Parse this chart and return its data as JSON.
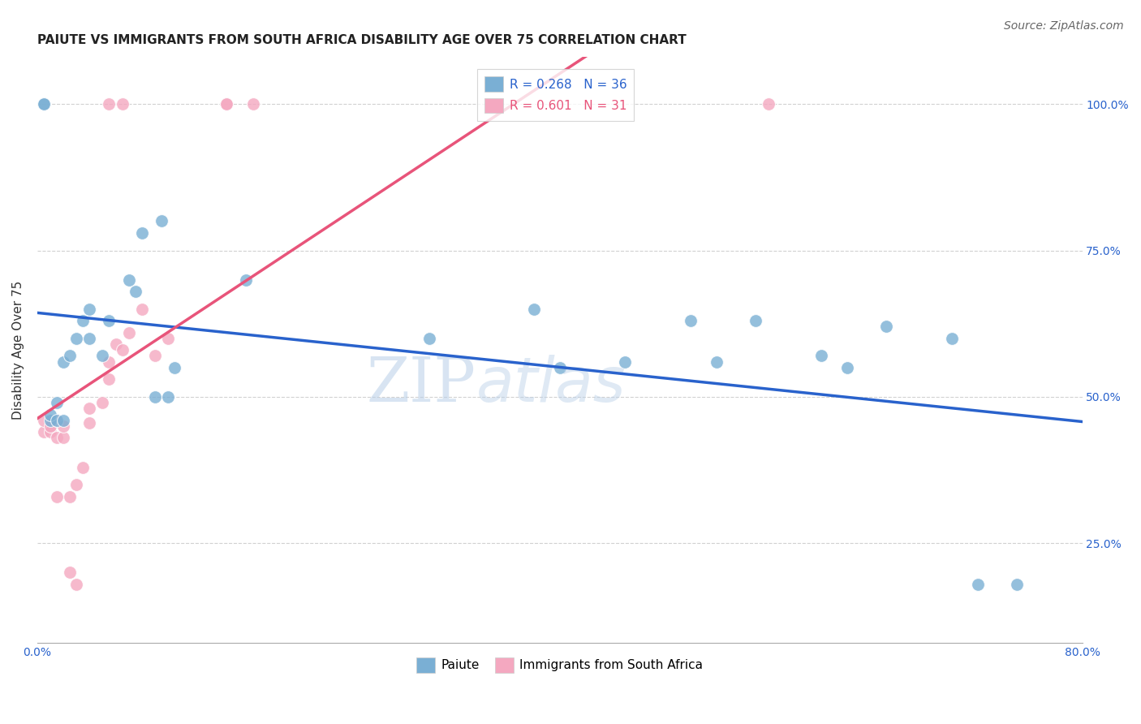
{
  "title": "PAIUTE VS IMMIGRANTS FROM SOUTH AFRICA DISABILITY AGE OVER 75 CORRELATION CHART",
  "source": "Source: ZipAtlas.com",
  "ylabel": "Disability Age Over 75",
  "xlim": [
    0,
    0.8
  ],
  "ylim": [
    0.08,
    1.08
  ],
  "xticks": [
    0.0,
    0.2,
    0.4,
    0.6,
    0.8
  ],
  "xtick_labels": [
    "0.0%",
    "",
    "",
    "",
    "80.0%"
  ],
  "ytick_labels_right": [
    "100.0%",
    "75.0%",
    "50.0%",
    "25.0%"
  ],
  "ytick_vals_right": [
    1.0,
    0.75,
    0.5,
    0.25
  ],
  "paiute_x": [
    0.005,
    0.005,
    0.01,
    0.01,
    0.015,
    0.015,
    0.02,
    0.02,
    0.025,
    0.03,
    0.035,
    0.04,
    0.04,
    0.05,
    0.055,
    0.07,
    0.075,
    0.08,
    0.09,
    0.095,
    0.1,
    0.105,
    0.16,
    0.3,
    0.38,
    0.4,
    0.45,
    0.5,
    0.52,
    0.55,
    0.6,
    0.62,
    0.65,
    0.7,
    0.72,
    0.75
  ],
  "paiute_y": [
    1.0,
    1.0,
    0.46,
    0.47,
    0.46,
    0.49,
    0.46,
    0.56,
    0.57,
    0.6,
    0.63,
    0.6,
    0.65,
    0.57,
    0.63,
    0.7,
    0.68,
    0.78,
    0.5,
    0.8,
    0.5,
    0.55,
    0.7,
    0.6,
    0.65,
    0.55,
    0.56,
    0.63,
    0.56,
    0.63,
    0.57,
    0.55,
    0.62,
    0.6,
    0.18,
    0.18
  ],
  "sa_x": [
    0.005,
    0.005,
    0.01,
    0.01,
    0.015,
    0.015,
    0.015,
    0.02,
    0.02,
    0.025,
    0.025,
    0.03,
    0.03,
    0.035,
    0.04,
    0.04,
    0.05,
    0.055,
    0.055,
    0.06,
    0.065,
    0.07,
    0.08,
    0.09,
    0.1,
    0.145,
    0.165,
    0.055,
    0.065,
    0.145,
    0.56
  ],
  "sa_y": [
    0.44,
    0.46,
    0.44,
    0.45,
    0.43,
    0.46,
    0.33,
    0.43,
    0.45,
    0.2,
    0.33,
    0.18,
    0.35,
    0.38,
    0.455,
    0.48,
    0.49,
    0.56,
    0.53,
    0.59,
    0.58,
    0.61,
    0.65,
    0.57,
    0.6,
    1.0,
    1.0,
    1.0,
    1.0,
    1.0,
    1.0
  ],
  "paiute_color": "#7aafd4",
  "sa_color": "#f4a8c0",
  "paiute_line_color": "#2962cc",
  "sa_line_color": "#e8547a",
  "paiute_R": 0.268,
  "paiute_N": 36,
  "sa_R": 0.601,
  "sa_N": 31,
  "legend_label_paiute": "Paiute",
  "legend_label_sa": "Immigrants from South Africa",
  "watermark_part1": "ZIP",
  "watermark_part2": "atlas",
  "grid_color": "#cccccc",
  "bg_color": "#ffffff",
  "title_fontsize": 11,
  "axis_label_fontsize": 11,
  "tick_fontsize": 10,
  "legend_fontsize": 11,
  "source_fontsize": 10
}
